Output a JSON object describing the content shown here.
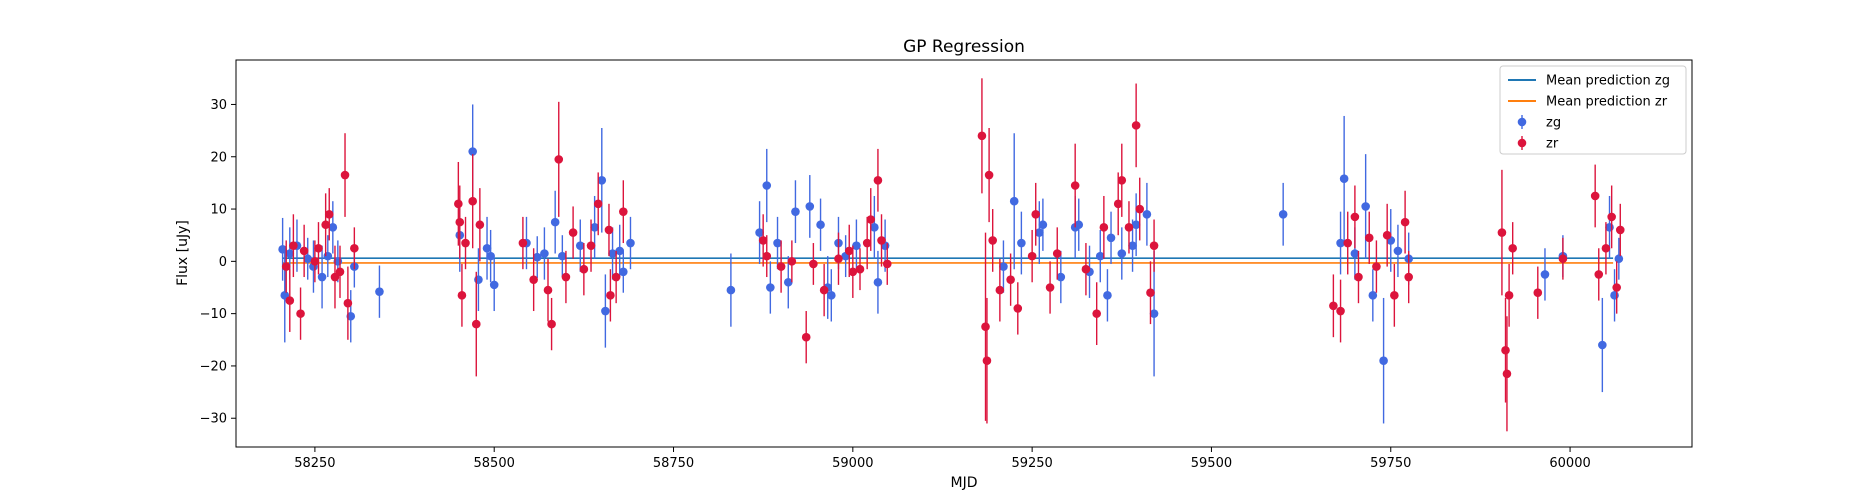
{
  "chart_data": {
    "type": "scatter",
    "title": "GP Regression",
    "xlabel": "MJD",
    "ylabel": "Flux [uJy]",
    "xlim": [
      58140,
      60170
    ],
    "ylim": [
      -35.5,
      38.5
    ],
    "xticks": [
      58250,
      58500,
      58750,
      59000,
      59250,
      59500,
      59750,
      60000
    ],
    "yticks": [
      -30,
      -20,
      -10,
      0,
      10,
      20,
      30
    ],
    "xtick_labels": [
      "58250",
      "58500",
      "58750",
      "59000",
      "59250",
      "59500",
      "59750",
      "60000"
    ],
    "ytick_labels": [
      "−30",
      "−20",
      "−10",
      "0",
      "10",
      "20",
      "30"
    ],
    "grid": false,
    "legend_position": "top-right",
    "legend": [
      {
        "label": "Mean prediction zg",
        "kind": "line",
        "color": "#1f77b4"
      },
      {
        "label": "Mean prediction zr",
        "kind": "line",
        "color": "#ff7f0e"
      },
      {
        "label": "zg",
        "kind": "errorbar",
        "color": "#4169e1"
      },
      {
        "label": "zr",
        "kind": "errorbar",
        "color": "#dc143c"
      }
    ],
    "series": [
      {
        "name": "Mean prediction zg",
        "kind": "line",
        "color": "#1f77b4",
        "x": [
          58205,
          60060
        ],
        "y": [
          0.6,
          0.6
        ]
      },
      {
        "name": "Mean prediction zr",
        "kind": "line",
        "color": "#ff7f0e",
        "x": [
          58205,
          60060
        ],
        "y": [
          -0.3,
          -0.3
        ]
      },
      {
        "name": "zg",
        "kind": "errorbar",
        "color": "#4169e1",
        "points": [
          [
            58205,
            2.3,
            6
          ],
          [
            58208,
            -6.5,
            9
          ],
          [
            58215,
            1.5,
            5
          ],
          [
            58225,
            3.0,
            5
          ],
          [
            58240,
            0.5,
            4
          ],
          [
            58248,
            -1.0,
            5
          ],
          [
            58260,
            -3.0,
            6
          ],
          [
            58268,
            1.0,
            4
          ],
          [
            58275,
            6.5,
            5
          ],
          [
            58282,
            0.0,
            4
          ],
          [
            58300,
            -10.5,
            5
          ],
          [
            58305,
            -1.0,
            4
          ],
          [
            58340,
            -5.8,
            5
          ],
          [
            58452,
            5.0,
            7
          ],
          [
            58470,
            21.0,
            9
          ],
          [
            58490,
            2.5,
            6
          ],
          [
            58495,
            1.0,
            5
          ],
          [
            58500,
            -4.5,
            5
          ],
          [
            58478,
            -3.5,
            6
          ],
          [
            58545,
            3.5,
            5
          ],
          [
            58560,
            0.8,
            4
          ],
          [
            58570,
            1.5,
            5
          ],
          [
            58585,
            7.5,
            6
          ],
          [
            58595,
            1.0,
            4
          ],
          [
            58620,
            3.0,
            5
          ],
          [
            58640,
            6.5,
            6
          ],
          [
            58650,
            15.5,
            10
          ],
          [
            58655,
            -9.5,
            7
          ],
          [
            58665,
            1.5,
            5
          ],
          [
            58675,
            2.0,
            5
          ],
          [
            58680,
            -2.0,
            4
          ],
          [
            58690,
            3.5,
            5
          ],
          [
            58830,
            -5.5,
            7
          ],
          [
            58870,
            5.5,
            6
          ],
          [
            58880,
            14.5,
            7
          ],
          [
            58885,
            -5.0,
            5
          ],
          [
            58895,
            3.5,
            5
          ],
          [
            58910,
            -4.0,
            5
          ],
          [
            58920,
            9.5,
            6
          ],
          [
            58940,
            10.5,
            6
          ],
          [
            58955,
            7.0,
            5
          ],
          [
            58965,
            -5.0,
            6
          ],
          [
            58970,
            -6.5,
            5
          ],
          [
            58980,
            3.5,
            5
          ],
          [
            58990,
            1.0,
            4
          ],
          [
            59005,
            3.0,
            5
          ],
          [
            59030,
            6.5,
            6
          ],
          [
            59035,
            -4.0,
            6
          ],
          [
            59045,
            3.0,
            5
          ],
          [
            59210,
            -1.0,
            5
          ],
          [
            59225,
            11.5,
            13
          ],
          [
            59235,
            3.5,
            6
          ],
          [
            59260,
            5.5,
            6
          ],
          [
            59265,
            7.0,
            5
          ],
          [
            59290,
            -3.0,
            5
          ],
          [
            59310,
            6.5,
            6
          ],
          [
            59315,
            7.0,
            5
          ],
          [
            59330,
            -2.0,
            5
          ],
          [
            59345,
            1.0,
            5
          ],
          [
            59355,
            -6.5,
            5
          ],
          [
            59360,
            4.5,
            5
          ],
          [
            59375,
            1.5,
            5
          ],
          [
            59390,
            3.0,
            5
          ],
          [
            59395,
            7.0,
            6
          ],
          [
            59410,
            9.0,
            6
          ],
          [
            59420,
            -10.0,
            12
          ],
          [
            59600,
            9.0,
            6
          ],
          [
            59680,
            3.5,
            6
          ],
          [
            59685,
            15.8,
            12
          ],
          [
            59700,
            1.5,
            5
          ],
          [
            59715,
            10.5,
            10
          ],
          [
            59725,
            -6.5,
            5
          ],
          [
            59740,
            -19.0,
            12
          ],
          [
            59750,
            4.0,
            6
          ],
          [
            59760,
            2.0,
            5
          ],
          [
            59775,
            0.5,
            5
          ],
          [
            59965,
            -2.5,
            5
          ],
          [
            59990,
            1.0,
            4
          ],
          [
            60045,
            -16.0,
            9
          ],
          [
            60055,
            6.5,
            6
          ],
          [
            60062,
            -6.5,
            5
          ],
          [
            60068,
            0.5,
            4
          ]
        ]
      },
      {
        "name": "zr",
        "kind": "errorbar",
        "color": "#dc143c",
        "points": [
          [
            58210,
            -1.0,
            5
          ],
          [
            58215,
            -7.5,
            6
          ],
          [
            58220,
            3.0,
            6
          ],
          [
            58230,
            -10.0,
            5
          ],
          [
            58235,
            2.0,
            5
          ],
          [
            58250,
            0.0,
            4
          ],
          [
            58255,
            2.5,
            5
          ],
          [
            58265,
            7.0,
            6
          ],
          [
            58270,
            9.0,
            5
          ],
          [
            58278,
            -3.0,
            6
          ],
          [
            58285,
            -2.0,
            5
          ],
          [
            58292,
            16.5,
            8
          ],
          [
            58296,
            -8.0,
            7
          ],
          [
            58305,
            2.5,
            4
          ],
          [
            58450,
            11.0,
            8
          ],
          [
            58452,
            7.5,
            7
          ],
          [
            58455,
            -6.5,
            6
          ],
          [
            58460,
            3.5,
            5
          ],
          [
            58470,
            11.5,
            9
          ],
          [
            58475,
            -12.0,
            10
          ],
          [
            58480,
            7.0,
            7
          ],
          [
            58540,
            3.5,
            5
          ],
          [
            58555,
            -3.5,
            6
          ],
          [
            58575,
            -5.5,
            6
          ],
          [
            58580,
            -12.0,
            5
          ],
          [
            58590,
            19.5,
            11
          ],
          [
            58600,
            -3.0,
            5
          ],
          [
            58610,
            5.5,
            5
          ],
          [
            58625,
            -1.5,
            5
          ],
          [
            58635,
            3.0,
            5
          ],
          [
            58645,
            11.0,
            6
          ],
          [
            58660,
            6.0,
            5
          ],
          [
            58662,
            -6.5,
            5
          ],
          [
            58670,
            -3.0,
            5
          ],
          [
            58680,
            9.5,
            6
          ],
          [
            58875,
            4.0,
            5
          ],
          [
            58880,
            1.0,
            4
          ],
          [
            58900,
            -1.0,
            5
          ],
          [
            58915,
            0.0,
            4
          ],
          [
            58935,
            -14.5,
            5
          ],
          [
            58945,
            -0.5,
            4
          ],
          [
            58960,
            -5.5,
            5
          ],
          [
            58980,
            0.5,
            5
          ],
          [
            58995,
            2.0,
            5
          ],
          [
            59000,
            -2.0,
            5
          ],
          [
            59010,
            -1.5,
            4
          ],
          [
            59020,
            3.5,
            5
          ],
          [
            59025,
            8.0,
            6
          ],
          [
            59035,
            15.5,
            6
          ],
          [
            59040,
            4.0,
            5
          ],
          [
            59048,
            -0.5,
            4
          ],
          [
            59180,
            24.0,
            11
          ],
          [
            59185,
            -12.5,
            18
          ],
          [
            59187,
            -19.0,
            12
          ],
          [
            59190,
            16.5,
            9
          ],
          [
            59195,
            4.0,
            6
          ],
          [
            59205,
            -5.5,
            6
          ],
          [
            59220,
            -3.5,
            5
          ],
          [
            59230,
            -9.0,
            5
          ],
          [
            59250,
            1.0,
            5
          ],
          [
            59255,
            9.0,
            6
          ],
          [
            59275,
            -5.0,
            5
          ],
          [
            59285,
            1.5,
            5
          ],
          [
            59310,
            14.5,
            8
          ],
          [
            59325,
            -1.5,
            5
          ],
          [
            59340,
            -10.0,
            6
          ],
          [
            59350,
            6.5,
            6
          ],
          [
            59370,
            11.0,
            6
          ],
          [
            59375,
            15.5,
            7
          ],
          [
            59385,
            6.5,
            5
          ],
          [
            59395,
            26.0,
            8
          ],
          [
            59400,
            10.0,
            6
          ],
          [
            59415,
            -6.0,
            6
          ],
          [
            59420,
            3.0,
            5
          ],
          [
            59670,
            -8.5,
            6
          ],
          [
            59680,
            -9.5,
            6
          ],
          [
            59690,
            3.5,
            6
          ],
          [
            59700,
            8.5,
            6
          ],
          [
            59705,
            -3.0,
            5
          ],
          [
            59720,
            4.5,
            5
          ],
          [
            59730,
            -1.0,
            5
          ],
          [
            59745,
            5.0,
            6
          ],
          [
            59755,
            -6.5,
            6
          ],
          [
            59770,
            7.5,
            6
          ],
          [
            59775,
            -3.0,
            5
          ],
          [
            59905,
            5.5,
            12
          ],
          [
            59910,
            -17.0,
            10
          ],
          [
            59912,
            -21.5,
            11
          ],
          [
            59915,
            -6.5,
            6
          ],
          [
            59920,
            2.5,
            5
          ],
          [
            59955,
            -6.0,
            5
          ],
          [
            59990,
            0.5,
            4
          ],
          [
            60035,
            12.5,
            6
          ],
          [
            60040,
            -2.5,
            5
          ],
          [
            60050,
            2.5,
            5
          ],
          [
            60058,
            8.5,
            6
          ],
          [
            60065,
            -5.0,
            5
          ],
          [
            60070,
            6.0,
            5
          ]
        ]
      }
    ]
  }
}
